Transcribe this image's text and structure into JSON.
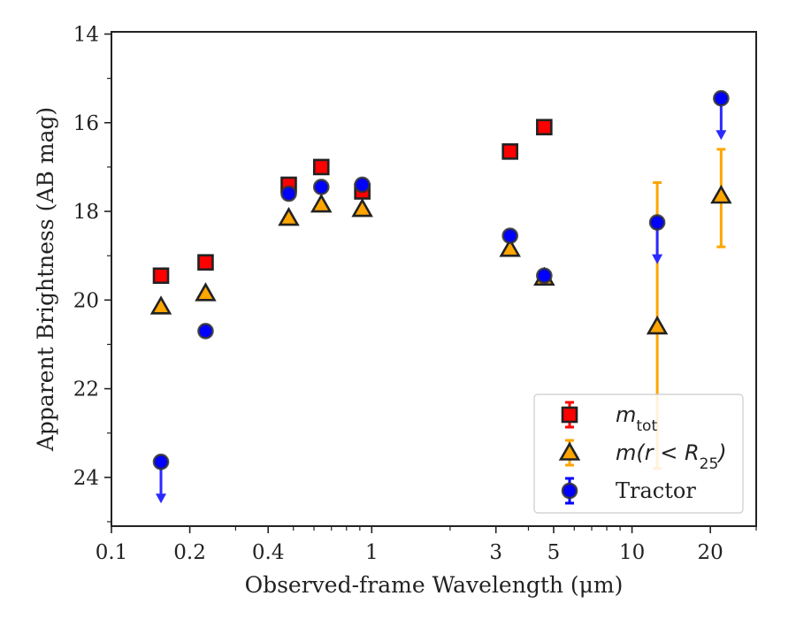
{
  "chart_data": {
    "type": "scatter",
    "title": "",
    "xlabel": "Observed-frame Wavelength (μm)",
    "ylabel": "Apparent Brightness (AB mag)",
    "xscale": "log",
    "xlim": [
      0.1,
      30
    ],
    "ylim": [
      25.1,
      13.95
    ],
    "y_inverted": true,
    "xticks": [
      0.1,
      0.2,
      0.4,
      1,
      3,
      5,
      10,
      20
    ],
    "xtick_labels": [
      "0.1",
      "0.2",
      "0.4",
      "1",
      "3",
      "5",
      "10",
      "20"
    ],
    "yticks": [
      14,
      16,
      18,
      20,
      22,
      24
    ],
    "ytick_labels": [
      "14",
      "16",
      "18",
      "20",
      "22",
      "24"
    ],
    "legend_position": "lower-right",
    "series": [
      {
        "name": "m_tot",
        "legend_main": "m",
        "legend_sub": "tot",
        "marker": "square",
        "color": "#ff0000",
        "points": [
          {
            "x": 0.155,
            "y": 19.45
          },
          {
            "x": 0.23,
            "y": 19.15
          },
          {
            "x": 0.48,
            "y": 17.4
          },
          {
            "x": 0.64,
            "y": 17.0
          },
          {
            "x": 0.92,
            "y": 17.55
          },
          {
            "x": 3.4,
            "y": 16.65
          },
          {
            "x": 4.6,
            "y": 16.1
          }
        ]
      },
      {
        "name": "m(r < R25)",
        "legend_main": "m(r < R",
        "legend_sub": "25",
        "legend_close": ")",
        "marker": "triangle",
        "color": "#ffa500",
        "points": [
          {
            "x": 0.155,
            "y": 20.15
          },
          {
            "x": 0.23,
            "y": 19.85
          },
          {
            "x": 0.48,
            "y": 18.15
          },
          {
            "x": 0.64,
            "y": 17.85
          },
          {
            "x": 0.92,
            "y": 17.95
          },
          {
            "x": 3.4,
            "y": 18.85
          },
          {
            "x": 4.6,
            "y": 19.5
          },
          {
            "x": 12.5,
            "y": 20.6,
            "yerr_low": 17.35,
            "yerr_high": 23.8
          },
          {
            "x": 22.0,
            "y": 17.65,
            "yerr_low": 16.6,
            "yerr_high": 18.8
          }
        ]
      },
      {
        "name": "Tractor",
        "marker": "circle",
        "color": "#0000ff",
        "points": [
          {
            "x": 0.155,
            "y": 23.65,
            "upper_limit": true
          },
          {
            "x": 0.23,
            "y": 20.7
          },
          {
            "x": 0.48,
            "y": 17.6
          },
          {
            "x": 0.64,
            "y": 17.45
          },
          {
            "x": 0.92,
            "y": 17.4
          },
          {
            "x": 3.4,
            "y": 18.55
          },
          {
            "x": 4.6,
            "y": 19.45
          },
          {
            "x": 12.5,
            "y": 18.25,
            "upper_limit": true
          },
          {
            "x": 22.0,
            "y": 15.45,
            "upper_limit": true
          }
        ]
      }
    ]
  }
}
